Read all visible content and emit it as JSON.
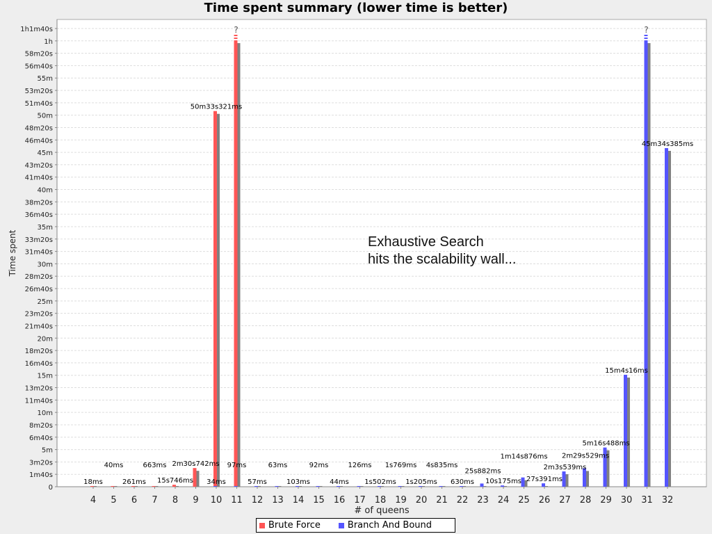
{
  "chart_data": {
    "type": "bar",
    "title": "Time spent summary (lower time is better)",
    "xlabel": "# of queens",
    "ylabel": "Time spent",
    "ylim_seconds": [
      0,
      3700
    ],
    "grid": true,
    "legend_position": "bottom",
    "y_ticks": [
      "0",
      "1m40s",
      "3m20s",
      "5m",
      "6m40s",
      "8m20s",
      "10m",
      "11m40s",
      "13m20s",
      "15m",
      "16m40s",
      "18m20s",
      "20m",
      "21m40s",
      "23m20s",
      "25m",
      "26m40s",
      "28m20s",
      "30m",
      "31m40s",
      "33m20s",
      "35m",
      "36m40s",
      "38m20s",
      "40m",
      "41m40s",
      "43m20s",
      "45m",
      "46m40s",
      "48m20s",
      "50m",
      "51m40s",
      "53m20s",
      "55m",
      "56m40s",
      "58m20s",
      "1h",
      "1h1m40s"
    ],
    "categories": [
      "4",
      "5",
      "6",
      "7",
      "8",
      "9",
      "10",
      "11",
      "12",
      "13",
      "14",
      "15",
      "16",
      "17",
      "18",
      "19",
      "20",
      "21",
      "22",
      "23",
      "24",
      "25",
      "26",
      "27",
      "28",
      "29",
      "30",
      "31",
      "32"
    ],
    "series": [
      {
        "name": "Brute Force",
        "color": "#ff5555",
        "points": [
          {
            "category": "4",
            "seconds": 0.018,
            "label": "18ms"
          },
          {
            "category": "5",
            "seconds": 0.04,
            "label": "40ms"
          },
          {
            "category": "6",
            "seconds": 0.261,
            "label": "261ms"
          },
          {
            "category": "7",
            "seconds": 0.663,
            "label": "663ms"
          },
          {
            "category": "8",
            "seconds": 15.746,
            "label": "15s746ms"
          },
          {
            "category": "9",
            "seconds": 150.742,
            "label": "2m30s742ms"
          },
          {
            "category": "10",
            "seconds": 3033.321,
            "label": "50m33s321ms"
          },
          {
            "category": "11",
            "seconds": null,
            "label": "?",
            "exceeds_axis": true
          }
        ]
      },
      {
        "name": "Branch And Bound",
        "color": "#5555ff",
        "points": [
          {
            "category": "10",
            "seconds": 0.034,
            "label": "34ms"
          },
          {
            "category": "11",
            "seconds": 0.097,
            "label": "97ms"
          },
          {
            "category": "12",
            "seconds": 0.057,
            "label": "57ms"
          },
          {
            "category": "13",
            "seconds": 0.063,
            "label": "63ms"
          },
          {
            "category": "14",
            "seconds": 0.103,
            "label": "103ms"
          },
          {
            "category": "15",
            "seconds": 0.092,
            "label": "92ms"
          },
          {
            "category": "16",
            "seconds": 0.044,
            "label": "44ms"
          },
          {
            "category": "17",
            "seconds": 0.126,
            "label": "126ms"
          },
          {
            "category": "18",
            "seconds": 1.502,
            "label": "1s502ms"
          },
          {
            "category": "19",
            "seconds": 1.769,
            "label": "1s769ms"
          },
          {
            "category": "20",
            "seconds": 1.205,
            "label": "1s205ms"
          },
          {
            "category": "21",
            "seconds": 4.835,
            "label": "4s835ms"
          },
          {
            "category": "22",
            "seconds": 0.63,
            "label": "630ms"
          },
          {
            "category": "23",
            "seconds": 25.882,
            "label": "25s882ms"
          },
          {
            "category": "24",
            "seconds": 10.175,
            "label": "10s175ms"
          },
          {
            "category": "25",
            "seconds": 74.876,
            "label": "1m14s876ms"
          },
          {
            "category": "26",
            "seconds": 27.391,
            "label": "27s391ms"
          },
          {
            "category": "27",
            "seconds": 123.539,
            "label": "2m3s539ms"
          },
          {
            "category": "28",
            "seconds": 149.529,
            "label": "2m29s529ms"
          },
          {
            "category": "29",
            "seconds": 316.488,
            "label": "5m16s488ms"
          },
          {
            "category": "30",
            "seconds": 904.016,
            "label": "15m4s16ms"
          },
          {
            "category": "31",
            "seconds": null,
            "label": "?",
            "exceeds_axis": true
          },
          {
            "category": "32",
            "seconds": 2734.385,
            "label": "45m34s385ms"
          }
        ]
      }
    ],
    "annotation": [
      "Exhaustive Search",
      "hits the scalability wall..."
    ]
  }
}
